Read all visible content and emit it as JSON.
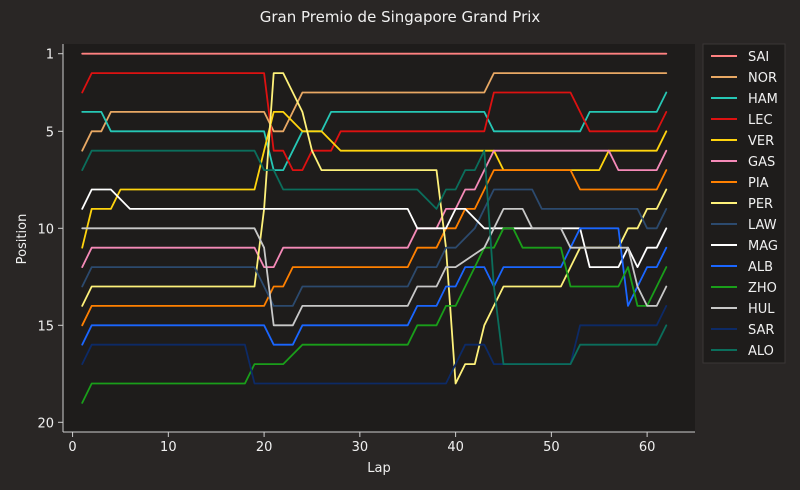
{
  "chart_data": {
    "type": "line",
    "title": "Gran Premio de Singapore Grand Prix",
    "xlabel": "Lap",
    "ylabel": "Position",
    "xlim": [
      -1,
      65
    ],
    "ylim": [
      20.5,
      0.5
    ],
    "xticks": [
      0,
      10,
      20,
      30,
      40,
      50,
      60
    ],
    "yticks": [
      1,
      5,
      10,
      15,
      20
    ],
    "grid": false,
    "legend": "right",
    "colors": {
      "figure_bg": "#292625",
      "axes_bg": "#1e1c1b",
      "text": "#f0f0f0",
      "axis": "#cfcfcf"
    },
    "series": [
      {
        "name": "SAI",
        "color": "#ff8181",
        "points": [
          [
            1,
            1
          ],
          [
            62,
            1
          ]
        ]
      },
      {
        "name": "NOR",
        "color": "#e8a864",
        "points": [
          [
            1,
            6
          ],
          [
            2,
            5
          ],
          [
            3,
            5
          ],
          [
            4,
            4
          ],
          [
            20,
            4
          ],
          [
            21,
            5
          ],
          [
            22,
            5
          ],
          [
            24,
            3
          ],
          [
            43,
            3
          ],
          [
            44,
            2
          ],
          [
            62,
            2
          ]
        ]
      },
      {
        "name": "HAM",
        "color": "#26c7b5",
        "points": [
          [
            1,
            4
          ],
          [
            3,
            4
          ],
          [
            4,
            5
          ],
          [
            20,
            5
          ],
          [
            21,
            7
          ],
          [
            22,
            7
          ],
          [
            23,
            6
          ],
          [
            24,
            5
          ],
          [
            26,
            5
          ],
          [
            27,
            4
          ],
          [
            43,
            4
          ],
          [
            44,
            5
          ],
          [
            53,
            5
          ],
          [
            54,
            4
          ],
          [
            61,
            4
          ],
          [
            62,
            3
          ]
        ]
      },
      {
        "name": "LEC",
        "color": "#dd1111",
        "points": [
          [
            1,
            3
          ],
          [
            2,
            2
          ],
          [
            20,
            2
          ],
          [
            21,
            6
          ],
          [
            22,
            6
          ],
          [
            23,
            7
          ],
          [
            24,
            7
          ],
          [
            25,
            6
          ],
          [
            27,
            6
          ],
          [
            28,
            5
          ],
          [
            43,
            5
          ],
          [
            44,
            3
          ],
          [
            52,
            3
          ],
          [
            54,
            5
          ],
          [
            61,
            5
          ],
          [
            62,
            4
          ]
        ]
      },
      {
        "name": "VER",
        "color": "#ffd40e",
        "points": [
          [
            1,
            11
          ],
          [
            2,
            9
          ],
          [
            4,
            9
          ],
          [
            5,
            8
          ],
          [
            19,
            8
          ],
          [
            20,
            6
          ],
          [
            21,
            4
          ],
          [
            22,
            4
          ],
          [
            24,
            5
          ],
          [
            26,
            5
          ],
          [
            28,
            6
          ],
          [
            44,
            6
          ],
          [
            45,
            7
          ],
          [
            52,
            7
          ],
          [
            54,
            7
          ],
          [
            55,
            7
          ],
          [
            56,
            6
          ],
          [
            61,
            6
          ],
          [
            62,
            5
          ]
        ]
      },
      {
        "name": "GAS",
        "color": "#f58ab8",
        "points": [
          [
            1,
            12
          ],
          [
            2,
            11
          ],
          [
            19,
            11
          ],
          [
            20,
            12
          ],
          [
            21,
            12
          ],
          [
            22,
            11
          ],
          [
            35,
            11
          ],
          [
            36,
            10
          ],
          [
            38,
            10
          ],
          [
            39,
            9
          ],
          [
            40,
            9
          ],
          [
            41,
            8
          ],
          [
            42,
            8
          ],
          [
            44,
            6
          ],
          [
            56,
            6
          ],
          [
            57,
            7
          ],
          [
            61,
            7
          ],
          [
            62,
            6
          ]
        ]
      },
      {
        "name": "PIA",
        "color": "#ff8000",
        "points": [
          [
            1,
            15
          ],
          [
            2,
            14
          ],
          [
            20,
            14
          ],
          [
            21,
            13
          ],
          [
            22,
            13
          ],
          [
            23,
            12
          ],
          [
            35,
            12
          ],
          [
            36,
            11
          ],
          [
            38,
            11
          ],
          [
            39,
            10
          ],
          [
            40,
            10
          ],
          [
            41,
            9
          ],
          [
            42,
            9
          ],
          [
            43,
            8
          ],
          [
            44,
            7
          ],
          [
            52,
            7
          ],
          [
            53,
            8
          ],
          [
            61,
            8
          ],
          [
            62,
            7
          ]
        ]
      },
      {
        "name": "PER",
        "color": "#fef17a",
        "points": [
          [
            1,
            14
          ],
          [
            2,
            13
          ],
          [
            19,
            13
          ],
          [
            20,
            9
          ],
          [
            21,
            2
          ],
          [
            22,
            2
          ],
          [
            24,
            4
          ],
          [
            25,
            6
          ],
          [
            26,
            7
          ],
          [
            38,
            7
          ],
          [
            39,
            11
          ],
          [
            40,
            18
          ],
          [
            41,
            17
          ],
          [
            42,
            17
          ],
          [
            43,
            15
          ],
          [
            44,
            14
          ],
          [
            45,
            13
          ],
          [
            51,
            13
          ],
          [
            53,
            11
          ],
          [
            57,
            11
          ],
          [
            58,
            10
          ],
          [
            59,
            10
          ],
          [
            60,
            9
          ],
          [
            61,
            9
          ],
          [
            62,
            8
          ]
        ]
      },
      {
        "name": "LAW",
        "color": "#2c4a6e",
        "points": [
          [
            1,
            13
          ],
          [
            2,
            12
          ],
          [
            19,
            12
          ],
          [
            21,
            14
          ],
          [
            23,
            14
          ],
          [
            24,
            13
          ],
          [
            35,
            13
          ],
          [
            36,
            12
          ],
          [
            38,
            12
          ],
          [
            39,
            11
          ],
          [
            40,
            11
          ],
          [
            42,
            10
          ],
          [
            43,
            9
          ],
          [
            44,
            8
          ],
          [
            48,
            8
          ],
          [
            49,
            9
          ],
          [
            59,
            9
          ],
          [
            60,
            10
          ],
          [
            61,
            10
          ],
          [
            62,
            9
          ]
        ]
      },
      {
        "name": "MAG",
        "color": "#ffffff",
        "points": [
          [
            1,
            9
          ],
          [
            2,
            8
          ],
          [
            4,
            8
          ],
          [
            6,
            9
          ],
          [
            35,
            9
          ],
          [
            36,
            10
          ],
          [
            39,
            10
          ],
          [
            40,
            9
          ],
          [
            41,
            9
          ],
          [
            43,
            10
          ],
          [
            53,
            10
          ],
          [
            54,
            12
          ],
          [
            57,
            12
          ],
          [
            58,
            11
          ],
          [
            59,
            12
          ],
          [
            60,
            11
          ],
          [
            61,
            11
          ],
          [
            62,
            10
          ]
        ]
      },
      {
        "name": "ALB",
        "color": "#1a66ff",
        "points": [
          [
            1,
            16
          ],
          [
            2,
            15
          ],
          [
            20,
            15
          ],
          [
            21,
            16
          ],
          [
            23,
            16
          ],
          [
            24,
            15
          ],
          [
            35,
            15
          ],
          [
            36,
            14
          ],
          [
            38,
            14
          ],
          [
            39,
            13
          ],
          [
            40,
            13
          ],
          [
            41,
            12
          ],
          [
            42,
            12
          ],
          [
            43,
            12
          ],
          [
            44,
            13
          ],
          [
            45,
            12
          ],
          [
            51,
            12
          ],
          [
            53,
            10
          ],
          [
            57,
            10
          ],
          [
            58,
            14
          ],
          [
            59,
            13
          ],
          [
            60,
            12
          ],
          [
            61,
            12
          ],
          [
            62,
            11
          ]
        ]
      },
      {
        "name": "ZHO",
        "color": "#1a9e1a",
        "points": [
          [
            1,
            19
          ],
          [
            2,
            18
          ],
          [
            18,
            18
          ],
          [
            19,
            17
          ],
          [
            22,
            17
          ],
          [
            24,
            16
          ],
          [
            35,
            16
          ],
          [
            36,
            15
          ],
          [
            38,
            15
          ],
          [
            39,
            14
          ],
          [
            40,
            14
          ],
          [
            42,
            12
          ],
          [
            43,
            11
          ],
          [
            44,
            11
          ],
          [
            45,
            10
          ],
          [
            46,
            10
          ],
          [
            47,
            11
          ],
          [
            51,
            11
          ],
          [
            52,
            13
          ],
          [
            57,
            13
          ],
          [
            58,
            12
          ],
          [
            59,
            14
          ],
          [
            60,
            14
          ],
          [
            61,
            13
          ],
          [
            62,
            12
          ]
        ]
      },
      {
        "name": "HUL",
        "color": "#c8c8c8",
        "points": [
          [
            1,
            10
          ],
          [
            19,
            10
          ],
          [
            20,
            11
          ],
          [
            21,
            15
          ],
          [
            23,
            15
          ],
          [
            24,
            14
          ],
          [
            35,
            14
          ],
          [
            36,
            13
          ],
          [
            38,
            13
          ],
          [
            39,
            12
          ],
          [
            40,
            12
          ],
          [
            43,
            11
          ],
          [
            44,
            10
          ],
          [
            45,
            9
          ],
          [
            47,
            9
          ],
          [
            48,
            10
          ],
          [
            51,
            10
          ],
          [
            52,
            11
          ],
          [
            57,
            11
          ],
          [
            58,
            11
          ],
          [
            59,
            13
          ],
          [
            60,
            14
          ],
          [
            61,
            14
          ],
          [
            62,
            13
          ]
        ]
      },
      {
        "name": "SAR",
        "color": "#0d2a66",
        "points": [
          [
            1,
            17
          ],
          [
            2,
            16
          ],
          [
            18,
            16
          ],
          [
            19,
            18
          ],
          [
            39,
            18
          ],
          [
            41,
            16
          ],
          [
            43,
            16
          ],
          [
            44,
            17
          ],
          [
            52,
            17
          ],
          [
            53,
            15
          ],
          [
            61,
            15
          ],
          [
            62,
            14
          ]
        ]
      },
      {
        "name": "ALO",
        "color": "#0b6e5c",
        "points": [
          [
            1,
            7
          ],
          [
            2,
            6
          ],
          [
            19,
            6
          ],
          [
            20,
            7
          ],
          [
            21,
            7
          ],
          [
            22,
            8
          ],
          [
            35,
            8
          ],
          [
            36,
            8
          ],
          [
            38,
            9
          ],
          [
            39,
            8
          ],
          [
            40,
            8
          ],
          [
            41,
            7
          ],
          [
            42,
            7
          ],
          [
            43,
            6
          ],
          [
            44,
            13
          ],
          [
            45,
            17
          ],
          [
            52,
            17
          ],
          [
            53,
            16
          ],
          [
            61,
            16
          ],
          [
            62,
            15
          ]
        ]
      }
    ]
  }
}
